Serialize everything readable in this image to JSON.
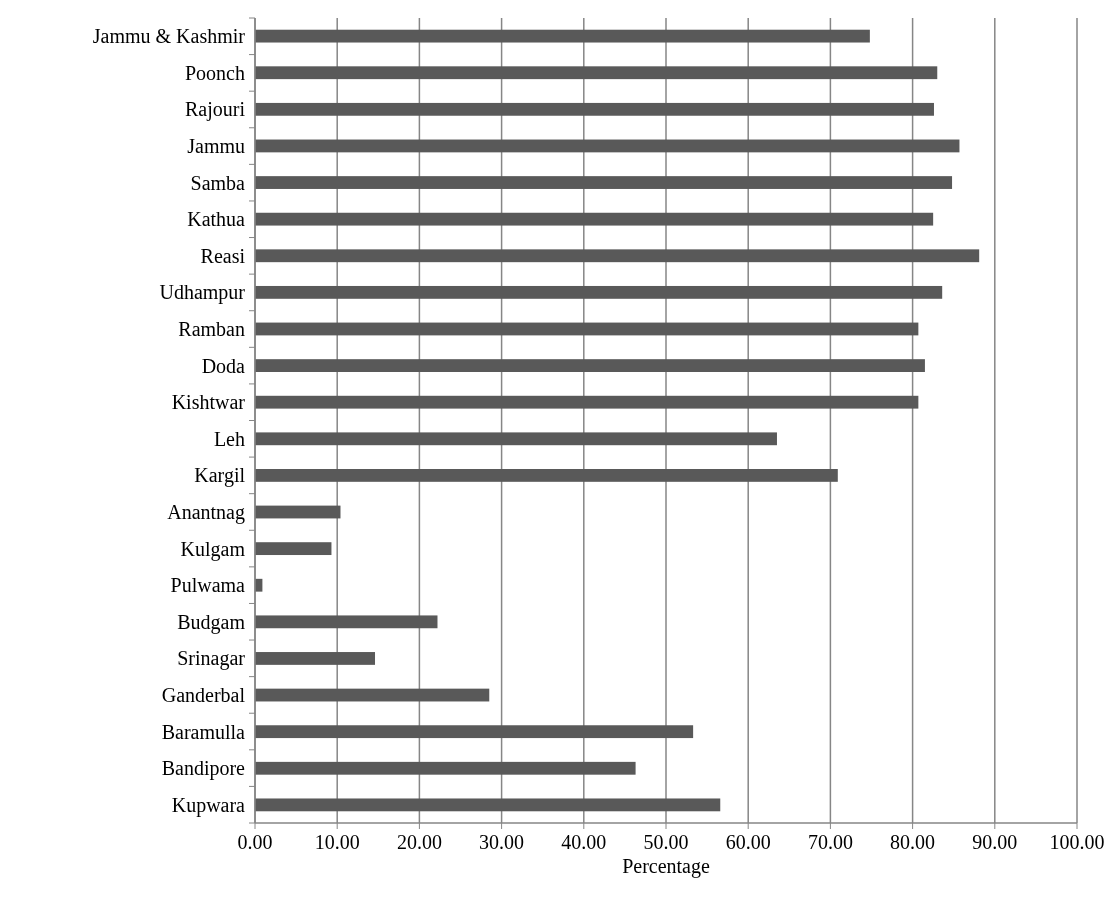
{
  "chart_data": {
    "type": "bar",
    "orientation": "horizontal",
    "xlabel": "Percentage",
    "categories": [
      "Jammu & Kashmir",
      "Poonch",
      "Rajouri",
      "Jammu",
      "Samba",
      "Kathua",
      "Reasi",
      "Udhampur",
      "Ramban",
      "Doda",
      "Kishtwar",
      "Leh",
      "Kargil",
      "Anantnag",
      "Kulgam",
      "Pulwama",
      "Budgam",
      "Srinagar",
      "Ganderbal",
      "Baramulla",
      "Bandipore",
      "Kupwara"
    ],
    "values": [
      74.8,
      83.0,
      82.6,
      85.7,
      84.8,
      82.5,
      88.1,
      83.6,
      80.7,
      81.5,
      80.7,
      63.5,
      70.9,
      10.4,
      9.3,
      0.9,
      22.2,
      14.6,
      28.5,
      53.3,
      46.3,
      56.6
    ],
    "color": "#595959",
    "xlim": [
      0,
      100
    ],
    "xticks": [
      {
        "value": 0,
        "label": "0.00"
      },
      {
        "value": 10,
        "label": "10.00"
      },
      {
        "value": 20,
        "label": "20.00"
      },
      {
        "value": 30,
        "label": "30.00"
      },
      {
        "value": 40,
        "label": "40.00"
      },
      {
        "value": 50,
        "label": "50.00"
      },
      {
        "value": 60,
        "label": "60.00"
      },
      {
        "value": 70,
        "label": "70.00"
      },
      {
        "value": 80,
        "label": "80.00"
      },
      {
        "value": 90,
        "label": "90.00"
      },
      {
        "value": 100,
        "label": "100.00"
      }
    ],
    "grid": "x"
  }
}
